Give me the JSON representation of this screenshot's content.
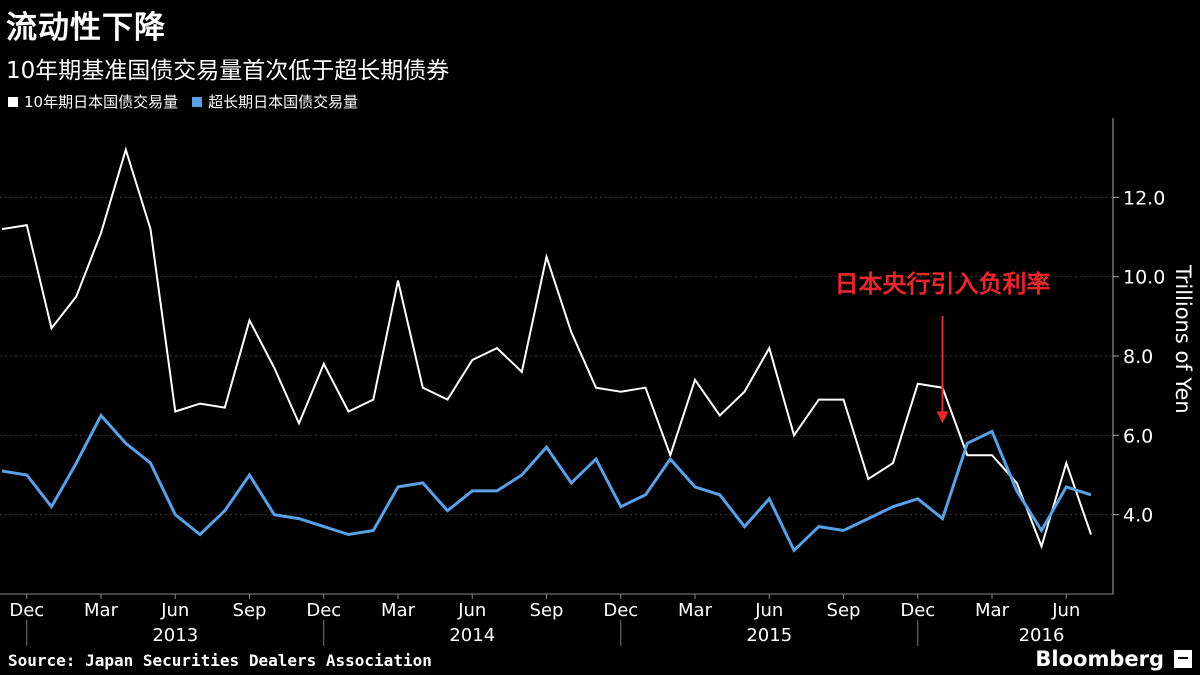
{
  "header": {
    "title": "流动性下降",
    "subtitle": "10年期基准国债交易量首次低于超长期债券"
  },
  "legend": [
    {
      "label": "10年期日本国债交易量",
      "color": "#ffffff"
    },
    {
      "label": "超长期日本国债交易量",
      "color": "#5aa0e6"
    }
  ],
  "footer": {
    "source": "Source: Japan Securities Dealers Association",
    "brand": "Bloomberg"
  },
  "chart_data": {
    "type": "line",
    "x": [
      "2012-11",
      "2012-12",
      "2013-01",
      "2013-02",
      "2013-03",
      "2013-04",
      "2013-05",
      "2013-06",
      "2013-07",
      "2013-08",
      "2013-09",
      "2013-10",
      "2013-11",
      "2013-12",
      "2014-01",
      "2014-02",
      "2014-03",
      "2014-04",
      "2014-05",
      "2014-06",
      "2014-07",
      "2014-08",
      "2014-09",
      "2014-10",
      "2014-11",
      "2014-12",
      "2015-01",
      "2015-02",
      "2015-03",
      "2015-04",
      "2015-05",
      "2015-06",
      "2015-07",
      "2015-08",
      "2015-09",
      "2015-10",
      "2015-11",
      "2015-12",
      "2016-01",
      "2016-02",
      "2016-03",
      "2016-04",
      "2016-05",
      "2016-06",
      "2016-07"
    ],
    "series": [
      {
        "name": "10年期日本国债交易量",
        "color": "#ffffff",
        "values": [
          11.2,
          11.3,
          8.7,
          9.5,
          11.1,
          13.2,
          11.2,
          6.6,
          6.8,
          6.7,
          8.9,
          7.7,
          6.3,
          7.8,
          6.6,
          6.9,
          9.9,
          7.2,
          6.9,
          7.9,
          8.2,
          7.6,
          10.5,
          8.6,
          7.2,
          7.1,
          7.2,
          5.5,
          7.4,
          6.5,
          7.1,
          8.2,
          6.0,
          6.9,
          6.9,
          4.9,
          5.3,
          7.3,
          7.2,
          5.5,
          5.5,
          4.8,
          3.2,
          5.3,
          3.5
        ]
      },
      {
        "name": "超长期日本国债交易量",
        "color": "#5aa0e6",
        "values": [
          5.1,
          5.0,
          4.2,
          5.3,
          6.5,
          5.8,
          5.3,
          4.0,
          3.5,
          4.1,
          5.0,
          4.0,
          3.9,
          3.7,
          3.5,
          3.6,
          4.7,
          4.8,
          4.1,
          4.6,
          4.6,
          5.0,
          5.7,
          4.8,
          5.4,
          4.2,
          4.5,
          5.4,
          4.7,
          4.5,
          3.7,
          4.4,
          3.1,
          3.7,
          3.6,
          3.9,
          4.2,
          4.4,
          3.9,
          5.8,
          6.1,
          4.6,
          3.6,
          4.7,
          4.5
        ]
      }
    ],
    "y_ticks": [
      "4.0",
      "6.0",
      "8.0",
      "10.0",
      "12.0"
    ],
    "ylim": [
      2.0,
      14.0
    ],
    "ylabel": "Trillions of Yen",
    "month_ticks": [
      {
        "label": "Dec",
        "x": "2012-12"
      },
      {
        "label": "Mar",
        "x": "2013-03"
      },
      {
        "label": "Jun",
        "x": "2013-06"
      },
      {
        "label": "Sep",
        "x": "2013-09"
      },
      {
        "label": "Dec",
        "x": "2013-12"
      },
      {
        "label": "Mar",
        "x": "2014-03"
      },
      {
        "label": "Jun",
        "x": "2014-06"
      },
      {
        "label": "Sep",
        "x": "2014-09"
      },
      {
        "label": "Dec",
        "x": "2014-12"
      },
      {
        "label": "Mar",
        "x": "2015-03"
      },
      {
        "label": "Jun",
        "x": "2015-06"
      },
      {
        "label": "Sep",
        "x": "2015-09"
      },
      {
        "label": "Dec",
        "x": "2015-12"
      },
      {
        "label": "Mar",
        "x": "2016-03"
      },
      {
        "label": "Jun",
        "x": "2016-06"
      }
    ],
    "year_labels": [
      {
        "label": "2013",
        "x": "2013-06"
      },
      {
        "label": "2014",
        "x": "2014-06"
      },
      {
        "label": "2015",
        "x": "2015-06"
      },
      {
        "label": "2016",
        "x": "2016-05"
      }
    ],
    "year_dividers": [
      "2012-12",
      "2013-12",
      "2014-12",
      "2015-12"
    ],
    "annotation": {
      "text": "日本央行引入负利率",
      "color": "#e8272c",
      "x": "2016-01",
      "y": 6.2
    },
    "grid": true,
    "legend_position": "top-left"
  }
}
